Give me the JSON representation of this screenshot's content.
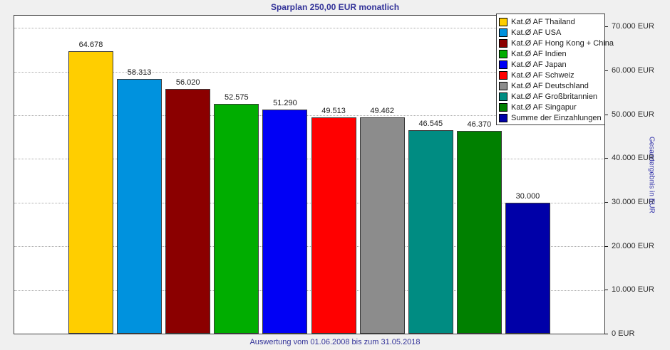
{
  "header": {
    "title": "Sparplan 250,00 EUR monatlich"
  },
  "footer": {
    "caption": "Auswertung vom 01.06.2008 bis zum 31.05.2018"
  },
  "colors": {
    "background": "#f0f0f0",
    "plot_background": "#ffffff",
    "title_text": "#333399",
    "axis_title_text": "#3333aa",
    "tick_text": "#2b2b2b",
    "bar_border": "#3a3a3a",
    "gridline": "#ababab"
  },
  "chart_data": {
    "type": "bar",
    "title": "Sparplan 250,00 EUR monatlich",
    "categories": [
      "Kat.Ø AF Thailand",
      "Kat.Ø AF USA",
      "Kat.Ø AF Hong Kong + China",
      "Kat.Ø AF Indien",
      "Kat.Ø AF Japan",
      "Kat.Ø AF Schweiz",
      "Kat.Ø AF Deutschland",
      "Kat.Ø AF Großbritannien",
      "Kat.Ø AF Singapur",
      "Summe der Einzahlungen"
    ],
    "values": [
      64678,
      58313,
      56020,
      52575,
      51290,
      49513,
      49462,
      46545,
      46370,
      30000
    ],
    "value_labels": [
      "64.678",
      "58.313",
      "56.020",
      "52.575",
      "51.290",
      "49.513",
      "49.462",
      "46.545",
      "46.370",
      "30.000"
    ],
    "bar_colors": [
      "#ffce00",
      "#0092de",
      "#8b0000",
      "#00ad00",
      "#0000f5",
      "#ff0000",
      "#8c8c8c",
      "#008c82",
      "#008000",
      "#0000a8"
    ],
    "xlabel": "",
    "ylabel": "Gesamtergebnis in EUR",
    "ylim": [
      0,
      72800
    ],
    "y_ticks": [
      {
        "value": 70000,
        "label": "70.000 EUR"
      },
      {
        "value": 60000,
        "label": "60.000 EUR"
      },
      {
        "value": 50000,
        "label": "50.000 EUR"
      },
      {
        "value": 40000,
        "label": "40.000 EUR"
      },
      {
        "value": 30000,
        "label": "30.000 EUR"
      },
      {
        "value": 20000,
        "label": "20.000 EUR"
      },
      {
        "value": 10000,
        "label": "10.000 EUR"
      },
      {
        "value": 0,
        "label": "0 EUR"
      }
    ],
    "grid": "horizontal-dotted",
    "legend_position": "top-right"
  }
}
